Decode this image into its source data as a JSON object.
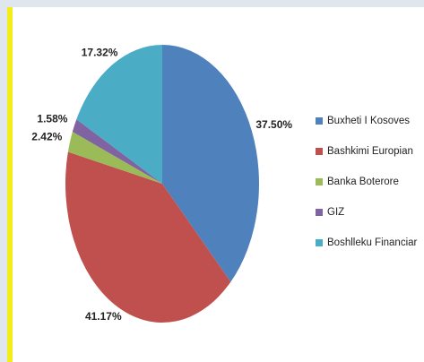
{
  "chart_data": {
    "type": "pie",
    "categories": [
      "Buxheti I Kosoves",
      "Bashkimi Europian",
      "Banka Boterore",
      "GIZ",
      "Boshlleku Financiar"
    ],
    "values": [
      37.5,
      41.17,
      2.42,
      1.58,
      17.32
    ],
    "value_labels": [
      "37.50%",
      "41.17%",
      "2.42%",
      "1.58%",
      "17.32%"
    ],
    "colors": [
      "#4f81bd",
      "#c0504d",
      "#9bbb59",
      "#8064a2",
      "#4bacc6"
    ],
    "legend": "right"
  }
}
